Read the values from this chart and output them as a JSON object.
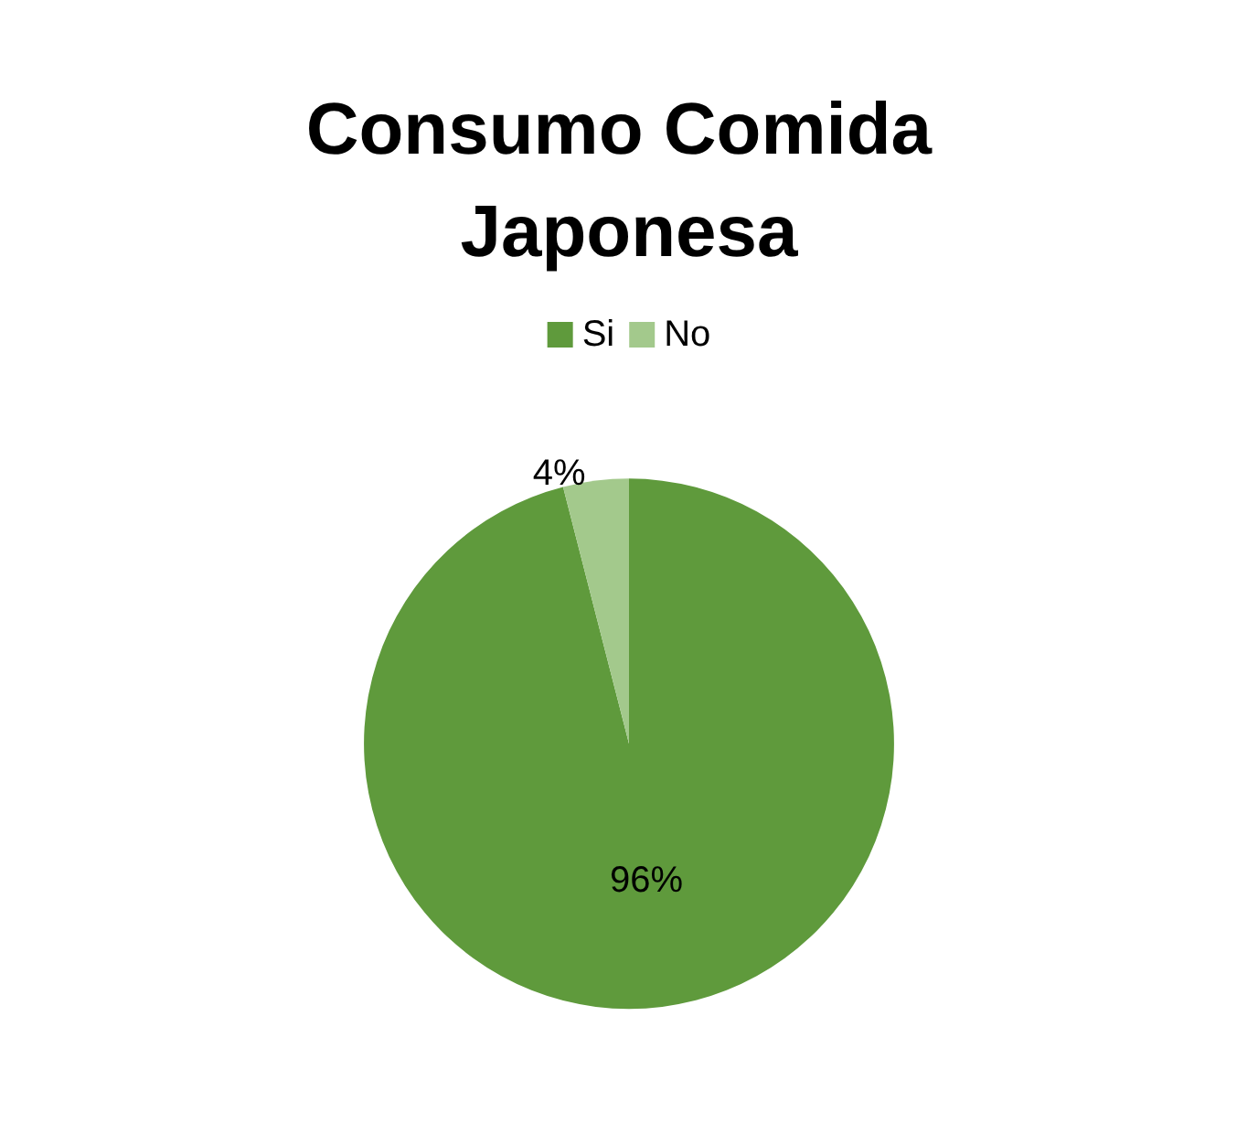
{
  "chart_data": {
    "type": "pie",
    "title": "Consumo Comida Japonesa",
    "categories": [
      "Si",
      "No"
    ],
    "values": [
      96,
      4
    ],
    "colors": [
      "#5f9a3c",
      "#a3c98c"
    ],
    "value_labels": [
      "96%",
      "4%"
    ],
    "legend": "top"
  }
}
